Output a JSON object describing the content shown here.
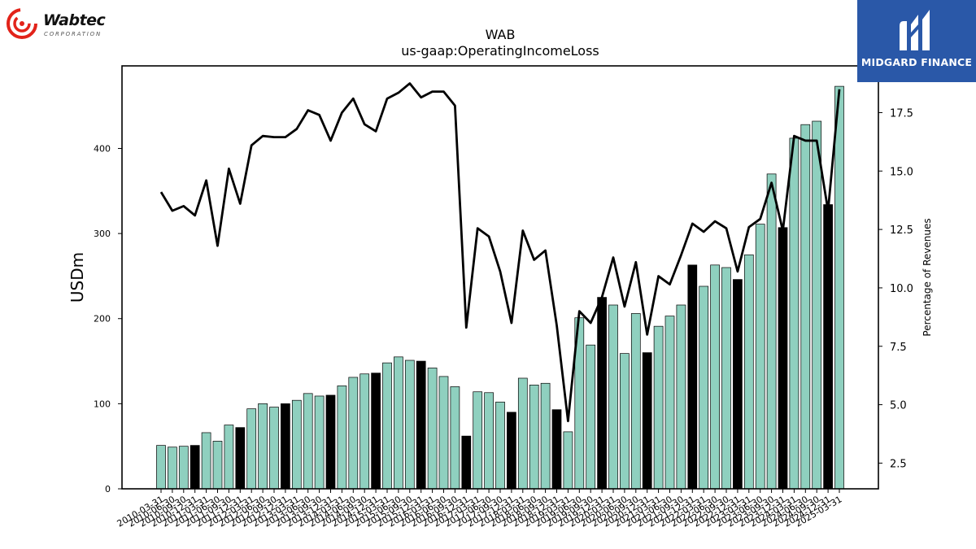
{
  "logos": {
    "wabtec_name": "Wabtec",
    "wabtec_sub": "CORPORATION",
    "midgard_name": "MIDGARD FINANCE"
  },
  "colors": {
    "bar_fill": "#8fd0bf",
    "bar_highlight": "#000000",
    "line": "#000000",
    "brand_red": "#e2231a",
    "brand_blue": "#2a58a8"
  },
  "chart_data": {
    "type": "bar",
    "title": "WAB",
    "subtitle": "us-gaap:OperatingIncomeLoss",
    "ylabel": "USDm",
    "y2label": "Percentage of Revenues",
    "ylim": [
      0,
      497
    ],
    "y2lim": [
      1.4,
      19.5
    ],
    "yticks": [
      0,
      100,
      200,
      300,
      400
    ],
    "y2ticks": [
      2.5,
      5.0,
      7.5,
      10.0,
      12.5,
      15.0,
      17.5
    ],
    "categories": [
      "2010-03-31",
      "2010-06-30",
      "2010-09-30",
      "2010-12-31",
      "2011-03-31",
      "2011-06-30",
      "2011-09-30",
      "2011-12-31",
      "2012-03-31",
      "2012-06-30",
      "2012-09-30",
      "2012-12-31",
      "2013-03-31",
      "2013-06-30",
      "2013-09-30",
      "2013-12-31",
      "2014-03-31",
      "2014-06-30",
      "2014-09-30",
      "2014-12-31",
      "2015-03-31",
      "2015-06-30",
      "2015-09-30",
      "2015-12-31",
      "2016-03-31",
      "2016-06-30",
      "2016-09-30",
      "2016-12-31",
      "2017-03-31",
      "2017-06-30",
      "2017-09-30",
      "2017-12-31",
      "2018-03-31",
      "2018-06-30",
      "2018-09-30",
      "2018-12-31",
      "2019-03-31",
      "2019-06-30",
      "2019-09-30",
      "2019-12-31",
      "2020-03-31",
      "2020-06-30",
      "2020-09-30",
      "2020-12-31",
      "2021-03-31",
      "2021-06-30",
      "2021-09-30",
      "2021-12-31",
      "2022-03-31",
      "2022-06-30",
      "2022-09-30",
      "2022-12-31",
      "2023-03-31",
      "2023-06-30",
      "2023-09-30",
      "2023-12-31",
      "2024-03-31",
      "2024-06-30",
      "2024-09-30",
      "2024-12-31",
      "2025-03-31"
    ],
    "series": [
      {
        "kind": "bar",
        "axis": "left",
        "values": [
          51,
          49,
          50,
          51,
          66,
          56,
          75,
          72,
          94,
          100,
          96,
          100,
          104,
          112,
          109,
          110,
          121,
          131,
          135,
          136,
          148,
          155,
          151,
          150,
          142,
          132,
          120,
          62,
          114,
          113,
          102,
          90,
          130,
          122,
          124,
          93,
          67,
          201,
          169,
          225,
          216,
          159,
          206,
          160,
          191,
          203,
          216,
          263,
          238,
          263,
          260,
          246,
          275,
          311,
          370,
          307,
          412,
          428,
          432,
          334,
          473
        ]
      },
      {
        "kind": "line",
        "axis": "right",
        "values": [
          14.1,
          13.3,
          13.5,
          13.1,
          14.6,
          11.8,
          15.1,
          13.6,
          16.1,
          16.5,
          16.45,
          16.45,
          16.8,
          17.6,
          17.4,
          16.3,
          17.5,
          18.1,
          17.0,
          16.7,
          18.1,
          18.35,
          18.75,
          18.15,
          18.4,
          18.4,
          17.8,
          8.3,
          12.55,
          12.2,
          10.7,
          8.5,
          12.45,
          11.2,
          11.6,
          8.4,
          4.3,
          9.0,
          8.5,
          9.6,
          11.3,
          9.2,
          11.1,
          8.0,
          10.5,
          10.15,
          11.4,
          12.75,
          12.4,
          12.85,
          12.55,
          10.7,
          12.6,
          12.95,
          14.5,
          12.45,
          16.5,
          16.3,
          16.3,
          13.3,
          18.5
        ]
      }
    ],
    "highlight_indices": [
      3,
      7,
      11,
      15,
      19,
      23,
      27,
      31,
      35,
      39,
      43,
      47,
      51,
      55,
      59
    ],
    "xtick_labels": [
      "2010-03-31",
      "2010-06-30",
      "2010-09-30",
      "2010-12-31",
      "2011-03-31",
      "2011-06-30",
      "2011-09-30",
      "2011-12-31",
      "2012-03-31",
      "2012-06-30",
      "2012-09-30",
      "2012-12-31",
      "2013-03-31",
      "2013-06-30",
      "2013-09-30",
      "2013-12-31",
      "2014-03-31",
      "2014-06-30",
      "2014-09-30",
      "2014-12-31",
      "2015-03-31",
      "2015-06-30",
      "2015-09-30",
      "2015-12-31",
      "2016-03-31",
      "2016-06-30",
      "2016-09-30",
      "2016-12-31",
      "2017-03-31",
      "2017-06-30",
      "2017-09-30",
      "2017-12-31",
      "2018-03-31",
      "2018-06-30",
      "2018-09-30",
      "2018-12-31",
      "2019-03-31",
      "2019-06-30",
      "2019-09-30",
      "2019-12-31",
      "2020-03-31",
      "2020-06-30",
      "2020-09-30",
      "2020-12-31",
      "2021-03-31",
      "2021-06-30",
      "2021-09-30",
      "2021-12-31",
      "2022-03-31",
      "2022-06-30",
      "2022-09-30",
      "2022-12-31",
      "2023-03-31",
      "2023-06-30",
      "2023-09-30",
      "2023-12-31",
      "2024-03-31",
      "2024-06-30",
      "2024-09-30",
      "2024-12-31",
      "2025-03-31"
    ],
    "grid": false,
    "legend": "none"
  }
}
